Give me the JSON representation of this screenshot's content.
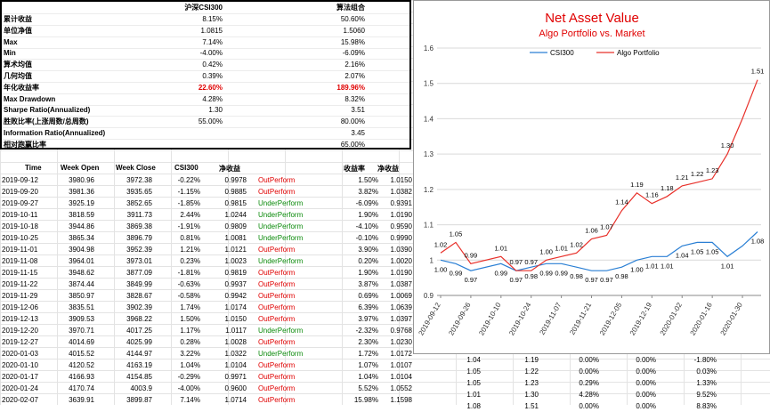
{
  "summary": {
    "headers": [
      "沪深CSI300",
      "算法组合"
    ],
    "rows": [
      {
        "label": "累计收益",
        "v1": "8.15%",
        "v2": "50.60%"
      },
      {
        "label": "单位净值",
        "v1": "1.0815",
        "v2": "1.5060"
      },
      {
        "label": "Max",
        "v1": "7.14%",
        "v2": "15.98%"
      },
      {
        "label": "Min",
        "v1": "-4.00%",
        "v2": "-6.09%"
      },
      {
        "label": "算术均值",
        "v1": "0.42%",
        "v2": "2.16%"
      },
      {
        "label": "几何均值",
        "v1": "0.39%",
        "v2": "2.07%"
      },
      {
        "label": "年化收益率",
        "v1": "22.60%",
        "v2": "189.96%",
        "highlight": true
      },
      {
        "label": "Max Drawdown",
        "v1": "4.28%",
        "v2": "8.32%"
      },
      {
        "label": "Sharpe Ratio(Annualized)",
        "v1": "1.30",
        "v2": "3.51"
      },
      {
        "label": "胜败比率(上涨周数/总周数)",
        "v1": "55.00%",
        "v2": "80.00%"
      },
      {
        "label": "Information Ratio(Annualized)",
        "v1": "",
        "v2": "3.45"
      },
      {
        "label": "相对跑赢比率",
        "v1": "",
        "v2": "65.00%"
      }
    ]
  },
  "table": {
    "headers": [
      "Time",
      "Week Open",
      "Week Close",
      "CSI300",
      "净收益",
      "",
      "收益率",
      "净收益"
    ],
    "rows": [
      [
        "2019-09-12",
        "3980.96",
        "3972.38",
        "-0.22%",
        "0.9978",
        "OutPerform",
        "1.50%",
        "1.0150"
      ],
      [
        "2019-09-20",
        "3981.36",
        "3935.65",
        "-1.15%",
        "0.9885",
        "OutPerform",
        "3.82%",
        "1.0382"
      ],
      [
        "2019-09-27",
        "3925.19",
        "3852.65",
        "-1.85%",
        "0.9815",
        "UnderPerform",
        "-6.09%",
        "0.9391"
      ],
      [
        "2019-10-11",
        "3818.59",
        "3911.73",
        "2.44%",
        "1.0244",
        "UnderPerform",
        "1.90%",
        "1.0190"
      ],
      [
        "2019-10-18",
        "3944.86",
        "3869.38",
        "-1.91%",
        "0.9809",
        "UnderPerform",
        "-4.10%",
        "0.9590"
      ],
      [
        "2019-10-25",
        "3865.34",
        "3896.79",
        "0.81%",
        "1.0081",
        "UnderPerform",
        "-0.10%",
        "0.9990"
      ],
      [
        "2019-11-01",
        "3904.98",
        "3952.39",
        "1.21%",
        "1.0121",
        "OutPerform",
        "3.90%",
        "1.0390"
      ],
      [
        "2019-11-08",
        "3964.01",
        "3973.01",
        "0.23%",
        "1.0023",
        "UnderPerform",
        "0.20%",
        "1.0020"
      ],
      [
        "2019-11-15",
        "3948.62",
        "3877.09",
        "-1.81%",
        "0.9819",
        "OutPerform",
        "1.90%",
        "1.0190"
      ],
      [
        "2019-11-22",
        "3874.44",
        "3849.99",
        "-0.63%",
        "0.9937",
        "OutPerform",
        "3.87%",
        "1.0387"
      ],
      [
        "2019-11-29",
        "3850.97",
        "3828.67",
        "-0.58%",
        "0.9942",
        "OutPerform",
        "0.69%",
        "1.0069"
      ],
      [
        "2019-12-06",
        "3835.51",
        "3902.39",
        "1.74%",
        "1.0174",
        "OutPerform",
        "6.39%",
        "1.0639"
      ],
      [
        "2019-12-13",
        "3909.53",
        "3968.22",
        "1.50%",
        "1.0150",
        "OutPerform",
        "3.97%",
        "1.0397"
      ],
      [
        "2019-12-20",
        "3970.71",
        "4017.25",
        "1.17%",
        "1.0117",
        "UnderPerform",
        "-2.32%",
        "0.9768"
      ],
      [
        "2019-12-27",
        "4014.69",
        "4025.99",
        "0.28%",
        "1.0028",
        "OutPerform",
        "2.30%",
        "1.0230"
      ],
      [
        "2020-01-03",
        "4015.52",
        "4144.97",
        "3.22%",
        "1.0322",
        "UnderPerform",
        "1.72%",
        "1.0172"
      ],
      [
        "2020-01-10",
        "4120.52",
        "4163.19",
        "1.04%",
        "1.0104",
        "OutPerform",
        "1.07%",
        "1.0107"
      ],
      [
        "2020-01-17",
        "4166.93",
        "4154.85",
        "-0.29%",
        "0.9971",
        "OutPerform",
        "1.04%",
        "1.0104"
      ],
      [
        "2020-01-24",
        "4170.74",
        "4003.9",
        "-4.00%",
        "0.9600",
        "OutPerform",
        "5.52%",
        "1.0552"
      ],
      [
        "2020-02-07",
        "3639.91",
        "3899.87",
        "7.14%",
        "1.0714",
        "OutPerform",
        "15.98%",
        "1.1598"
      ]
    ]
  },
  "extra_rows": [
    [
      "1.04",
      "1.19",
      "0.00%",
      "0.00%",
      "-1.80%"
    ],
    [
      "1.05",
      "1.22",
      "0.00%",
      "0.00%",
      "0.03%"
    ],
    [
      "1.05",
      "1.23",
      "0.29%",
      "0.00%",
      "1.33%"
    ],
    [
      "1.01",
      "1.30",
      "4.28%",
      "0.00%",
      "9.52%"
    ],
    [
      "1.08",
      "1.51",
      "0.00%",
      "0.00%",
      "8.83%"
    ]
  ],
  "colors": {
    "outperform": "#e00000",
    "underperform": "#0a8a0a",
    "csi_line": "#2a7fd4",
    "algo_line": "#e8302a"
  },
  "chart_data": {
    "type": "line",
    "title": "Net  Asset  Value",
    "subtitle": "Algo Portfolio vs. Market",
    "ylim": [
      0.9,
      1.6
    ],
    "yticks": [
      "0.9",
      "1",
      "1.1",
      "1.2",
      "1.3",
      "1.4",
      "1.5",
      "1.6"
    ],
    "x": [
      "2019-09-12",
      "2019-09-19",
      "2019-09-26",
      "2019-10-03",
      "2019-10-10",
      "2019-10-17",
      "2019-10-24",
      "2019-10-31",
      "2019-11-07",
      "2019-11-14",
      "2019-11-21",
      "2019-11-28",
      "2019-12-05",
      "2019-12-12",
      "2019-12-19",
      "2019-12-26",
      "2020-01-02",
      "2020-01-09",
      "2020-01-16",
      "2020-01-23",
      "2020-01-30",
      "2020-02-06"
    ],
    "xticks": [
      "2019-09-12",
      "2019-09-26",
      "2019-10-10",
      "2019-10-24",
      "2019-11-07",
      "2019-11-21",
      "2019-12-05",
      "2019-12-19",
      "2020-01-02",
      "2020-01-16",
      "2020-01-30"
    ],
    "series": [
      {
        "name": "CSI300",
        "values": [
          1.0,
          0.99,
          0.97,
          null,
          0.99,
          0.97,
          0.98,
          0.99,
          0.99,
          0.98,
          0.97,
          0.97,
          0.98,
          1.0,
          1.01,
          1.01,
          1.04,
          1.05,
          1.05,
          1.01,
          1.04,
          1.08
        ]
      },
      {
        "name": "Algo Portfolio",
        "values": [
          1.02,
          1.05,
          0.99,
          null,
          1.01,
          0.97,
          0.97,
          1.0,
          1.01,
          1.02,
          1.06,
          1.07,
          1.14,
          1.19,
          1.16,
          1.18,
          1.21,
          1.22,
          1.23,
          1.3,
          1.4,
          1.51
        ]
      }
    ],
    "labels": {
      "CSI300": [
        "1.00",
        "0.99",
        "0.97",
        "",
        "0.99",
        "0.97",
        "0.98",
        "0.99",
        "0.99",
        "0.98",
        "0.97",
        "0.97",
        "0.98",
        "1.00",
        "1.01",
        "1.01",
        "1.04",
        "1.05",
        "1.05",
        "1.01",
        "",
        "1.08"
      ],
      "Algo Portfolio": [
        "1.02",
        "1.05",
        "0.99",
        "",
        "1.01",
        "0.97",
        "0.97",
        "1.00",
        "1.01",
        "1.02",
        "1.06",
        "1.07",
        "1.14",
        "1.19",
        "1.16",
        "1.18",
        "1.21",
        "1.22",
        "1.23",
        "1.30",
        "",
        "1.51"
      ]
    }
  }
}
